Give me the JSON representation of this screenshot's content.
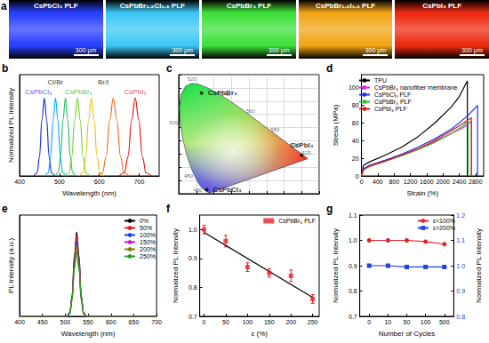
{
  "chart_data": [
    {
      "label": "a",
      "type": "image",
      "images": [
        {
          "label": "CsPbCl₃ PLF",
          "color": "#2a40ff"
        },
        {
          "label": "CsPbBr₁.₅Cl₁.₅ PLF",
          "color": "#3cc8f5"
        },
        {
          "label": "CsPbBr₃ PLF",
          "color": "#3ee03a"
        },
        {
          "label": "CsPbBr₁.₅I₁.₅ PLF",
          "color": "#f2a516"
        },
        {
          "label": "CsPbI₃ PLF",
          "color": "#ee2a10"
        }
      ],
      "scale_bar": "300 μm"
    },
    {
      "label": "b",
      "type": "line",
      "xlabel": "Wavelength (nm)",
      "ylabel": "Normalized PL Intensity",
      "xlim": [
        400,
        750
      ],
      "xticks": [
        400,
        500,
        600,
        700
      ],
      "ylim": [
        0,
        1.3
      ],
      "tick_labels": "x",
      "series": [
        {
          "color": "#2030e0",
          "x": [
            436,
            444,
            450,
            456,
            462,
            468,
            474,
            480,
            488
          ],
          "values": [
            0,
            0.04,
            0.25,
            0.72,
            1,
            0.72,
            0.25,
            0.04,
            0
          ]
        },
        {
          "color": "#10b0f0",
          "x": [
            464,
            472,
            478,
            484,
            490,
            496,
            502,
            508,
            516
          ],
          "values": [
            0,
            0.04,
            0.25,
            0.72,
            1,
            0.72,
            0.25,
            0.04,
            0
          ]
        },
        {
          "color": "#30c070",
          "x": [
            489,
            497,
            503,
            509,
            515,
            521,
            527,
            533,
            541
          ],
          "values": [
            0,
            0.04,
            0.25,
            0.72,
            1,
            0.72,
            0.25,
            0.04,
            0
          ]
        },
        {
          "color": "#7bd030",
          "x": [
            514,
            524,
            531,
            538,
            545,
            552,
            559,
            566,
            576
          ],
          "values": [
            0,
            0.04,
            0.25,
            0.72,
            1,
            0.72,
            0.25,
            0.04,
            0
          ]
        },
        {
          "color": "#f0c020",
          "x": [
            549,
            559,
            566,
            573,
            580,
            587,
            594,
            601,
            611
          ],
          "values": [
            0,
            0.04,
            0.25,
            0.72,
            1,
            0.72,
            0.25,
            0.04,
            0
          ]
        },
        {
          "color": "#f07020",
          "x": [
            595,
            608,
            617,
            626,
            635,
            644,
            653,
            662,
            675
          ],
          "values": [
            0,
            0.04,
            0.25,
            0.72,
            1,
            0.72,
            0.25,
            0.04,
            0
          ]
        },
        {
          "color": "#e01818",
          "x": [
            650,
            663,
            672,
            681,
            690,
            699,
            708,
            717,
            730
          ],
          "values": [
            0,
            0.04,
            0.25,
            0.72,
            1,
            0.72,
            0.25,
            0.04,
            0
          ]
        }
      ],
      "annotations": [
        {
          "text": "CsPbCl₃",
          "x": 447,
          "y": 1.08,
          "color": "#2030e0"
        },
        {
          "text": "Cl/Br",
          "x": 490,
          "y": 1.2,
          "color": "#000000"
        },
        {
          "text": "CsPbBr₃",
          "x": 548,
          "y": 1.08,
          "color": "#30b030"
        },
        {
          "text": "Br/I",
          "x": 610,
          "y": 1.2,
          "color": "#000000"
        },
        {
          "text": "CsPbI₃",
          "x": 690,
          "y": 1.08,
          "color": "#e01818"
        }
      ]
    },
    {
      "label": "c",
      "type": "chromaticity",
      "xlim": [
        0,
        0.8
      ],
      "ylim": [
        0,
        0.9
      ],
      "xticks": [
        0,
        0.1,
        0.2,
        0.3,
        0.4,
        0.5,
        0.6,
        0.7,
        0.8
      ],
      "yticks": [
        0,
        0.1,
        0.2,
        0.3,
        0.4,
        0.5,
        0.6,
        0.7,
        0.8,
        0.9
      ],
      "grid": true,
      "tick_labels": false,
      "locus": {
        "x": [
          0.1741,
          0.144,
          0.1241,
          0.1096,
          0.0913,
          0.0687,
          0.0454,
          0.0235,
          0.0082,
          0.0039,
          0.0139,
          0.0389,
          0.0743,
          0.1142,
          0.1547,
          0.2296,
          0.3016,
          0.3731,
          0.4441,
          0.5125,
          0.5752,
          0.627,
          0.6915,
          0.7347
        ],
        "y": [
          0.005,
          0.0297,
          0.0578,
          0.0868,
          0.1327,
          0.2007,
          0.295,
          0.4127,
          0.5384,
          0.6548,
          0.7502,
          0.812,
          0.8338,
          0.8262,
          0.8059,
          0.7543,
          0.6923,
          0.6245,
          0.5547,
          0.4866,
          0.4242,
          0.3725,
          0.3083,
          0.2653
        ]
      },
      "series": [
        {
          "type": "scatter",
          "color": "#000000",
          "labels": [
            "CsPbBr₃",
            "CsPbCl₃",
            "CsPbI₃"
          ],
          "x": [
            0.13,
            0.16,
            0.7
          ],
          "values": [
            0.76,
            0.03,
            0.29
          ]
        }
      ],
      "annotations": [
        {
          "text": "460",
          "x": 0.144,
          "y": 0.0297
        },
        {
          "text": "480",
          "x": 0.0913,
          "y": 0.1327
        },
        {
          "text": "500",
          "x": 0.0082,
          "y": 0.5384
        },
        {
          "text": "520",
          "x": 0.0743,
          "y": 0.8338
        },
        {
          "text": "540",
          "x": 0.2296,
          "y": 0.7543
        },
        {
          "text": "560",
          "x": 0.3731,
          "y": 0.6245
        },
        {
          "text": "580",
          "x": 0.5125,
          "y": 0.4866
        },
        {
          "text": "600",
          "x": 0.627,
          "y": 0.3725
        },
        {
          "text": "620",
          "x": 0.6915,
          "y": 0.3083
        }
      ]
    },
    {
      "label": "d",
      "type": "line",
      "xlabel": "Strain (%)",
      "ylabel": "Stress (MPa)",
      "xlim": [
        0,
        3000
      ],
      "xticks": [
        0,
        400,
        800,
        1200,
        1600,
        2000,
        2400,
        2800
      ],
      "ylim": [
        0,
        115
      ],
      "yticks": [
        0,
        20,
        40,
        60,
        80,
        100
      ],
      "legend": "upper left",
      "series": [
        {
          "name": "TPU",
          "color": "#000000",
          "x": [
            0,
            50,
            200,
            600,
            1000,
            1400,
            1800,
            2200,
            2400,
            2600,
            2600
          ],
          "values": [
            0,
            12,
            16,
            24,
            33,
            45,
            60,
            78,
            90,
            108,
            0
          ]
        },
        {
          "name": "CsPbBr₃ nanofiber membrane",
          "color": "#e020e0",
          "x": [
            0,
            50,
            200,
            600,
            1000,
            1400,
            1800,
            2200,
            2500,
            2700,
            2700
          ],
          "values": [
            0,
            8,
            12,
            18,
            24,
            31,
            39,
            48,
            55,
            62,
            0
          ]
        },
        {
          "name": "CsPbCl₃ PLF",
          "color": "#2030e0",
          "x": [
            0,
            50,
            200,
            600,
            1000,
            1400,
            1800,
            2200,
            2600,
            2850,
            2850
          ],
          "values": [
            0,
            8,
            12,
            18,
            25,
            33,
            42,
            53,
            68,
            80,
            0
          ]
        },
        {
          "name": "CsPbBr₃ PLF",
          "color": "#30c030",
          "x": [
            0,
            50,
            200,
            600,
            1000,
            1400,
            1800,
            2200,
            2500,
            2620,
            2620
          ],
          "values": [
            0,
            7,
            11,
            17,
            23,
            30,
            38,
            48,
            57,
            63,
            0
          ]
        },
        {
          "name": "CsPbI₃ PLF",
          "color": "#e01818",
          "x": [
            0,
            50,
            200,
            600,
            1000,
            1400,
            1800,
            2200,
            2500,
            2700,
            2700
          ],
          "values": [
            0,
            7,
            11,
            17,
            24,
            31,
            40,
            51,
            60,
            66,
            0
          ]
        }
      ]
    },
    {
      "label": "e",
      "type": "line",
      "xlabel": "Wavelength (nm)",
      "ylabel": "PL Intensity (a.u.)",
      "xlim": [
        400,
        700
      ],
      "xticks": [
        400,
        450,
        500,
        550,
        600,
        650,
        700
      ],
      "ylim": [
        0,
        1.2
      ],
      "tick_labels": "x",
      "legend": "upper right",
      "series": [
        {
          "name": "0%",
          "color": "#000000",
          "x": [
            400,
            503,
            510,
            515,
            520,
            525,
            530,
            535,
            540,
            547,
            700
          ],
          "values": [
            0,
            0,
            0.04,
            0.25,
            0.72,
            1,
            0.72,
            0.25,
            0.04,
            0,
            0
          ]
        },
        {
          "name": "50%",
          "color": "#e41a1c",
          "x": [
            400,
            503,
            510,
            515,
            520,
            525,
            530,
            535,
            540,
            547,
            700
          ],
          "values": [
            0,
            0,
            0.04,
            0.24,
            0.69,
            0.96,
            0.69,
            0.24,
            0.04,
            0,
            0
          ]
        },
        {
          "name": "100%",
          "color": "#1f3fd0",
          "x": [
            400,
            503,
            510,
            515,
            520,
            525,
            530,
            535,
            540,
            547,
            700
          ],
          "values": [
            0,
            0,
            0.04,
            0.22,
            0.64,
            0.89,
            0.64,
            0.22,
            0.04,
            0,
            0
          ]
        },
        {
          "name": "150%",
          "color": "#c020c0",
          "x": [
            400,
            503,
            510,
            515,
            520,
            525,
            530,
            535,
            540,
            547,
            700
          ],
          "values": [
            0,
            0,
            0.03,
            0.21,
            0.61,
            0.85,
            0.61,
            0.21,
            0.03,
            0,
            0
          ]
        },
        {
          "name": "200%",
          "color": "#808000",
          "x": [
            400,
            503,
            510,
            515,
            520,
            525,
            530,
            535,
            540,
            547,
            700
          ],
          "values": [
            0,
            0,
            0.03,
            0.21,
            0.6,
            0.84,
            0.6,
            0.21,
            0.03,
            0,
            0
          ]
        },
        {
          "name": "250%",
          "color": "#20a020",
          "x": [
            400,
            503,
            510,
            515,
            520,
            525,
            530,
            535,
            540,
            547,
            700
          ],
          "values": [
            0,
            0,
            0.03,
            0.19,
            0.55,
            0.77,
            0.55,
            0.19,
            0.03,
            0,
            0
          ]
        }
      ]
    },
    {
      "label": "f",
      "type": "scatter",
      "xlabel": "ε (%)",
      "ylabel": "Normalized PL Intensity",
      "xlim": [
        -10,
        265
      ],
      "xticks": [
        0,
        50,
        100,
        150,
        200,
        250
      ],
      "ylim": [
        0.7,
        1.05
      ],
      "yticks": [
        0.7,
        0.8,
        0.9,
        {
          "value": 1,
          "label": "1.0"
        }
      ],
      "legend": "upper right",
      "series": [
        {
          "name": "CsPbBr₃ PLF",
          "type": "scatter",
          "marker": "square",
          "color": "#e8202a",
          "x": [
            0,
            50,
            100,
            150,
            200,
            250
          ],
          "values": [
            1.0,
            0.96,
            0.87,
            0.85,
            0.84,
            0.76
          ],
          "errors": [
            0.015,
            0.02,
            0.015,
            0.015,
            0.02,
            0.015
          ]
        },
        {
          "type": "line",
          "color": "#000000",
          "line_style": "solid",
          "x": [
            0,
            250
          ],
          "values": [
            0.99,
            0.765
          ]
        }
      ]
    },
    {
      "label": "g",
      "type": "line",
      "xlabel": "Number of Cycles",
      "ylabel": "Normalized PL Intensity",
      "y2label": "Normalized PL Intensity",
      "categories": [
        "0",
        "10",
        "50",
        "100",
        "500"
      ],
      "ylim": [
        0.7,
        1.1
      ],
      "yticks": [
        0.7,
        0.8,
        0.9,
        {
          "value": 1,
          "label": "1.0"
        },
        1.1
      ],
      "y2lim": [
        0.8,
        1.2
      ],
      "y2ticks": [
        0.8,
        0.9,
        {
          "value": 1,
          "label": "1.0"
        },
        1.1,
        1.2
      ],
      "legend": "upper right",
      "series": [
        {
          "name": "ε=100%",
          "color": "#e8202a",
          "marker": "circle",
          "values": [
            1.0,
            1.0,
            1.0,
            0.995,
            0.985
          ]
        },
        {
          "name": "ε=200%",
          "color": "#2040e0",
          "marker": "square",
          "axis": "y2",
          "values": [
            1.0,
            1.0,
            0.995,
            0.995,
            0.995
          ]
        }
      ]
    }
  ]
}
